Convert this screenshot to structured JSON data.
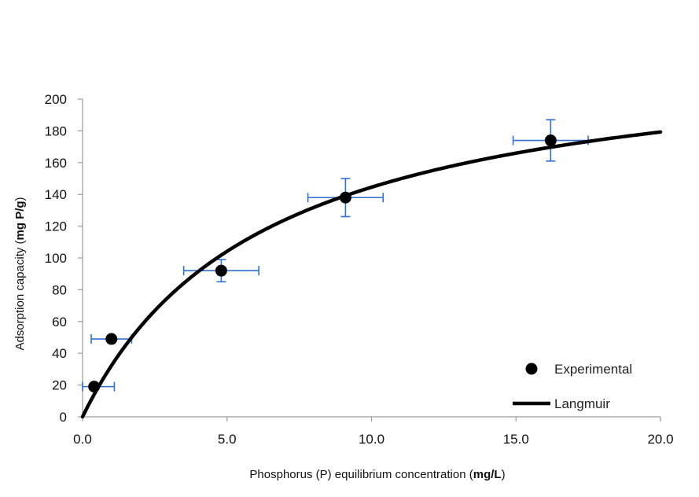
{
  "chart_data": {
    "type": "scatter",
    "title": "",
    "xlabel": "Phosphorus (P) equilibrium concentration (mg/L)",
    "xlabel_parts": {
      "plain": "Phosphorus (P) equilibrium concentration (",
      "bold": "mg/L",
      "close": ")"
    },
    "ylabel": "Adsorption capacity (mg P/g)",
    "ylabel_parts": {
      "plain": "Adsorption capacity (",
      "bold": "mg P/g",
      "close": ")"
    },
    "xlim": [
      0,
      20
    ],
    "ylim": [
      0,
      200
    ],
    "xticks": [
      "0.0",
      "5.0",
      "10.0",
      "15.0",
      "20.0"
    ],
    "yticks": [
      "0",
      "20",
      "40",
      "60",
      "80",
      "100",
      "120",
      "140",
      "160",
      "180",
      "200"
    ],
    "grid": false,
    "legend_position": "bottom-right",
    "series": [
      {
        "name": "Experimental",
        "kind": "points",
        "color": "#000000",
        "x": [
          0.4,
          1.0,
          4.8,
          9.1,
          16.2
        ],
        "y": [
          19,
          49,
          92,
          138,
          174
        ],
        "x_err": [
          0.7,
          0.7,
          1.3,
          1.3,
          1.3
        ],
        "y_err": [
          0,
          0,
          7,
          12,
          13
        ]
      },
      {
        "name": "Langmuir",
        "kind": "line",
        "color": "#000000",
        "model": {
          "qmax": 236,
          "KL": 0.158
        },
        "x_range": [
          0,
          20
        ]
      }
    ],
    "errorbar_color": "#2e6fd6"
  }
}
